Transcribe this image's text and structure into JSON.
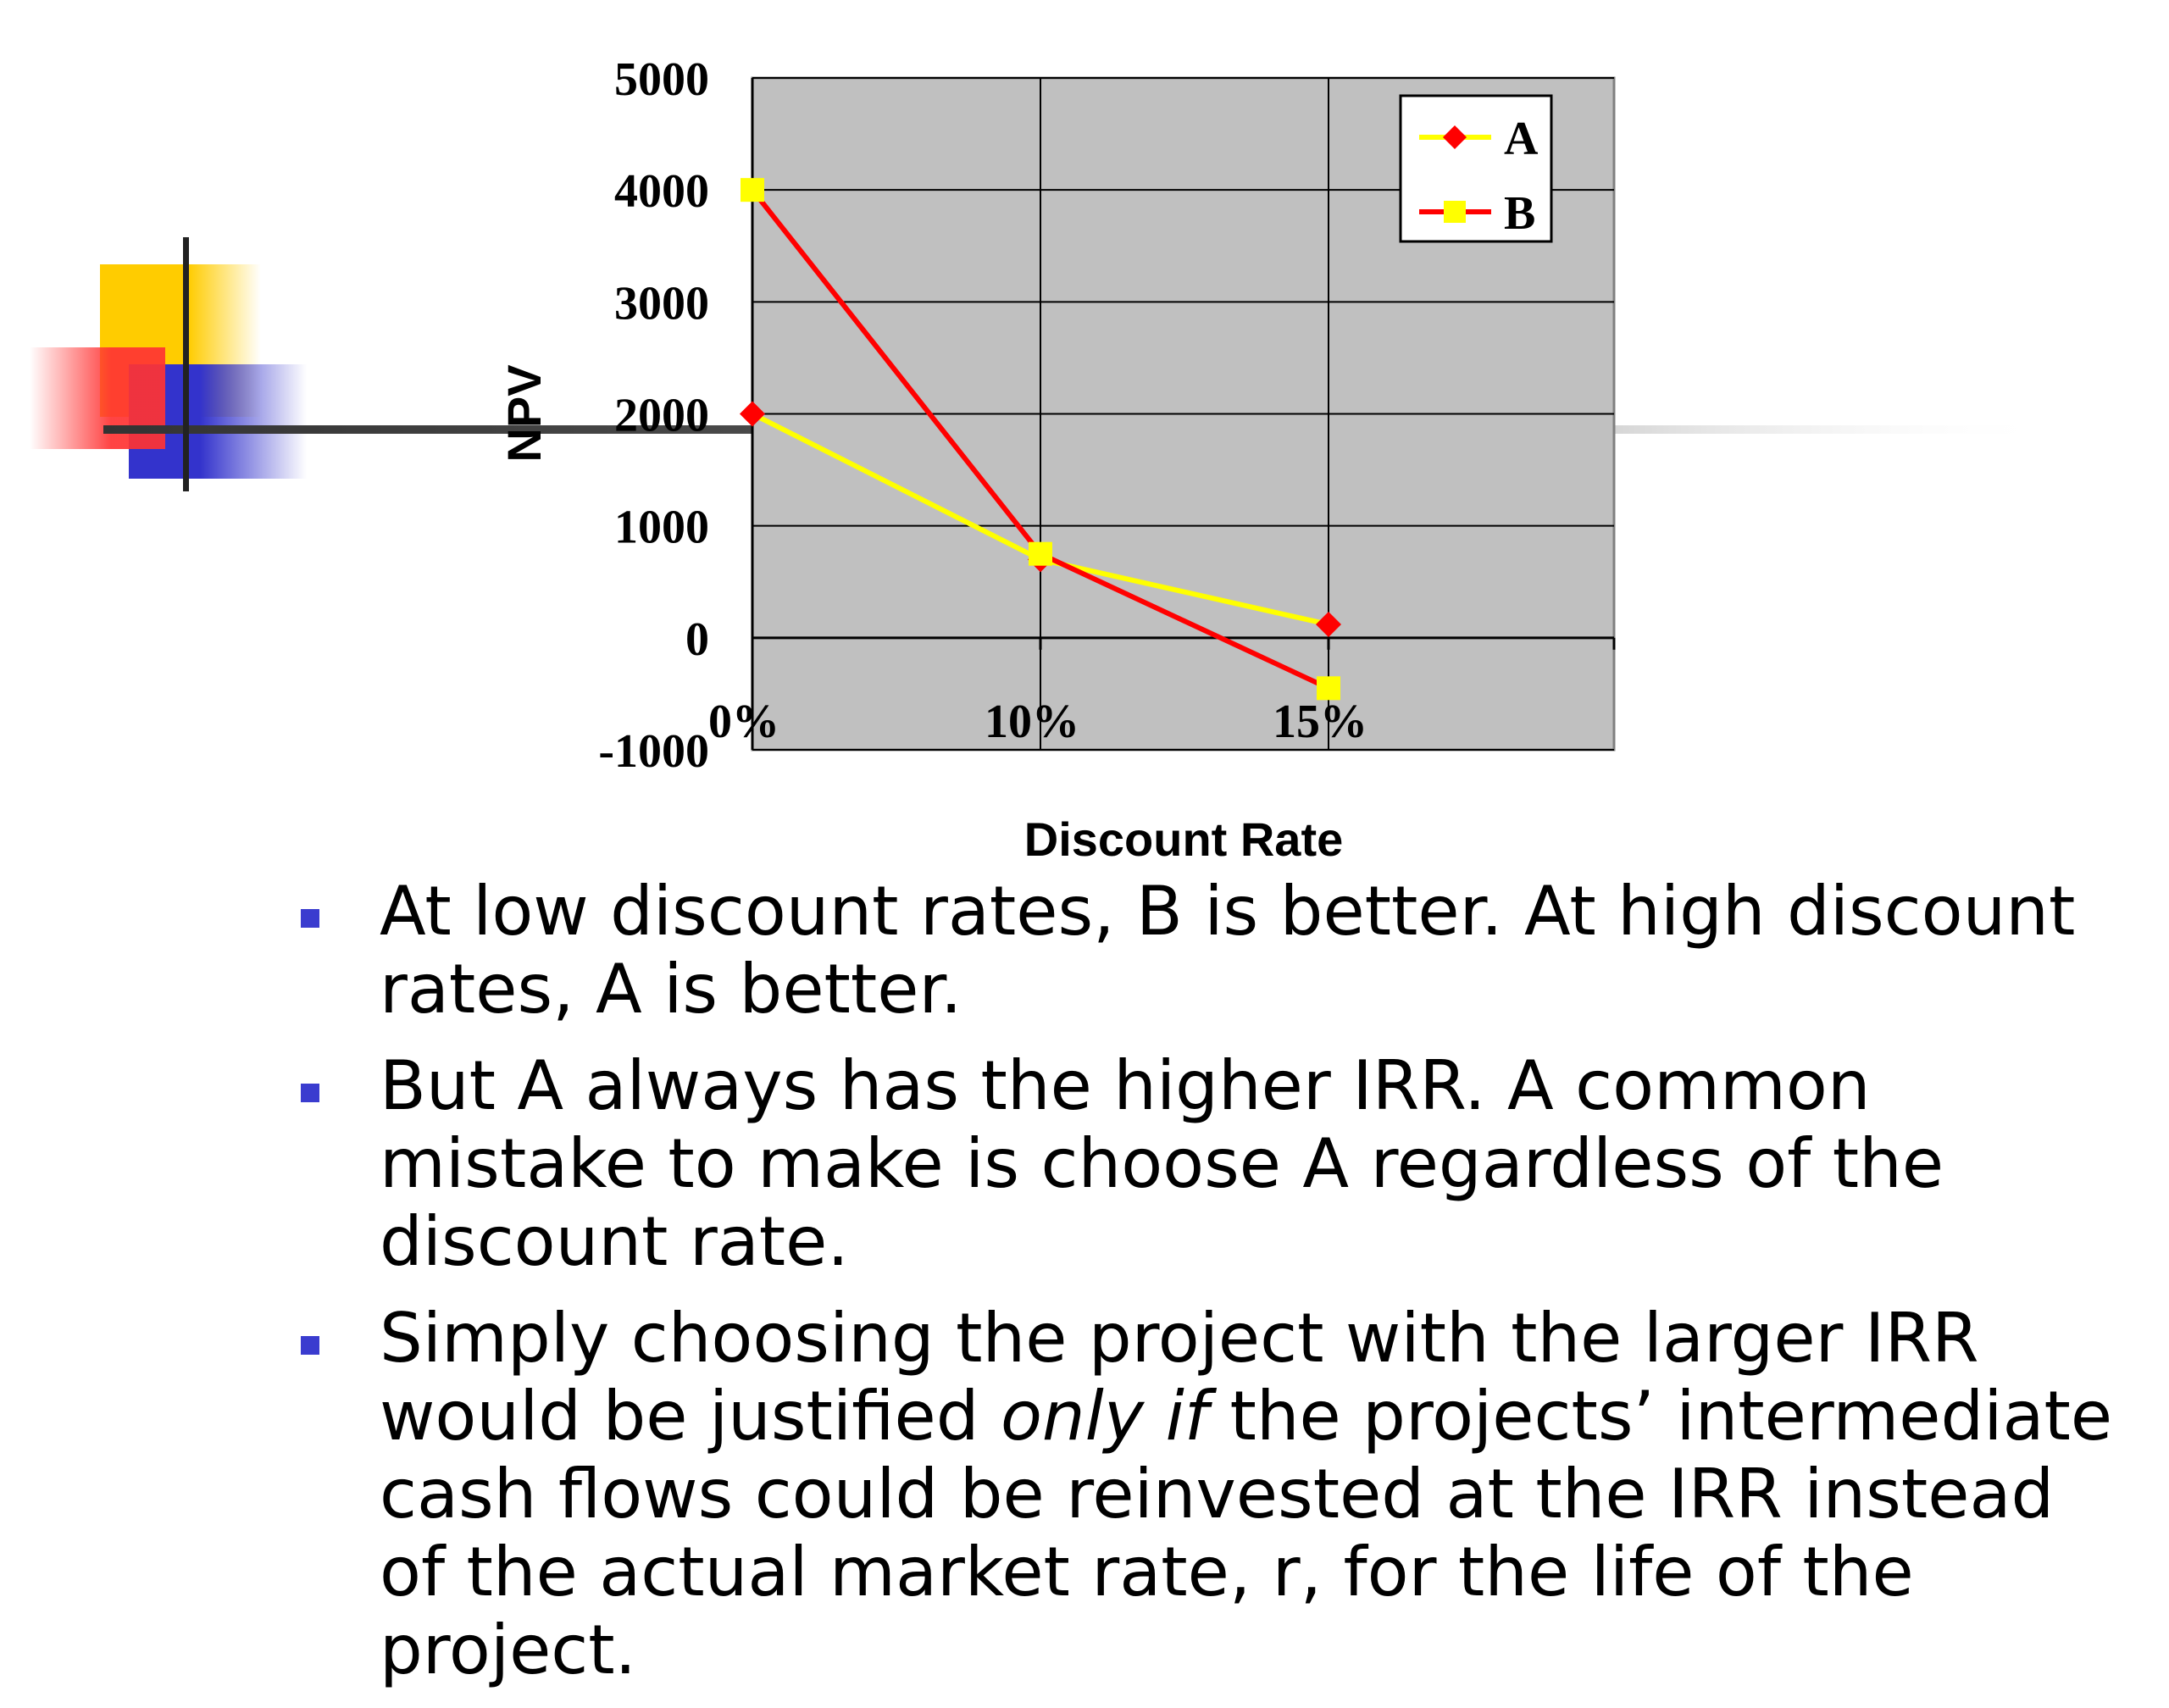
{
  "colors": {
    "series_a": "#ff0000",
    "series_b": "#ffff00",
    "plot_bg": "#c0c0c0",
    "bullet": "#3a3ccf",
    "deco_yellow": "#ffcc00",
    "deco_red": "#ff3333",
    "deco_blue": "#3333cc"
  },
  "chart_data": {
    "type": "line",
    "x": [
      "0%",
      "10%",
      "15%"
    ],
    "xlabel": "Discount Rate",
    "ylabel": "NPV",
    "ylim": [
      -1000,
      5000
    ],
    "yticks": [
      "5000",
      "4000",
      "3000",
      "2000",
      "1000",
      "0",
      "-1000"
    ],
    "grid": true,
    "legend_position": "top-right",
    "series": [
      {
        "name": "A",
        "values": [
          2000,
          700,
          120
        ],
        "marker": "diamond"
      },
      {
        "name": "B",
        "values": [
          4000,
          750,
          -450
        ],
        "marker": "square"
      }
    ]
  },
  "bullets": [
    {
      "segments": [
        {
          "text": "At low discount rates, B is better.  At high discount rates, A is better."
        }
      ]
    },
    {
      "segments": [
        {
          "text": "But A always has the higher IRR.  A common mistake to make is choose A regardless of the discount rate."
        }
      ]
    },
    {
      "segments": [
        {
          "text": "Simply choosing the project with the larger IRR would be justified "
        },
        {
          "text": "only if",
          "italic": true
        },
        {
          "text": " the projects’ intermediate cash flows could be reinvested at the IRR instead of the actual market rate, r, for the life of the project."
        }
      ]
    }
  ]
}
